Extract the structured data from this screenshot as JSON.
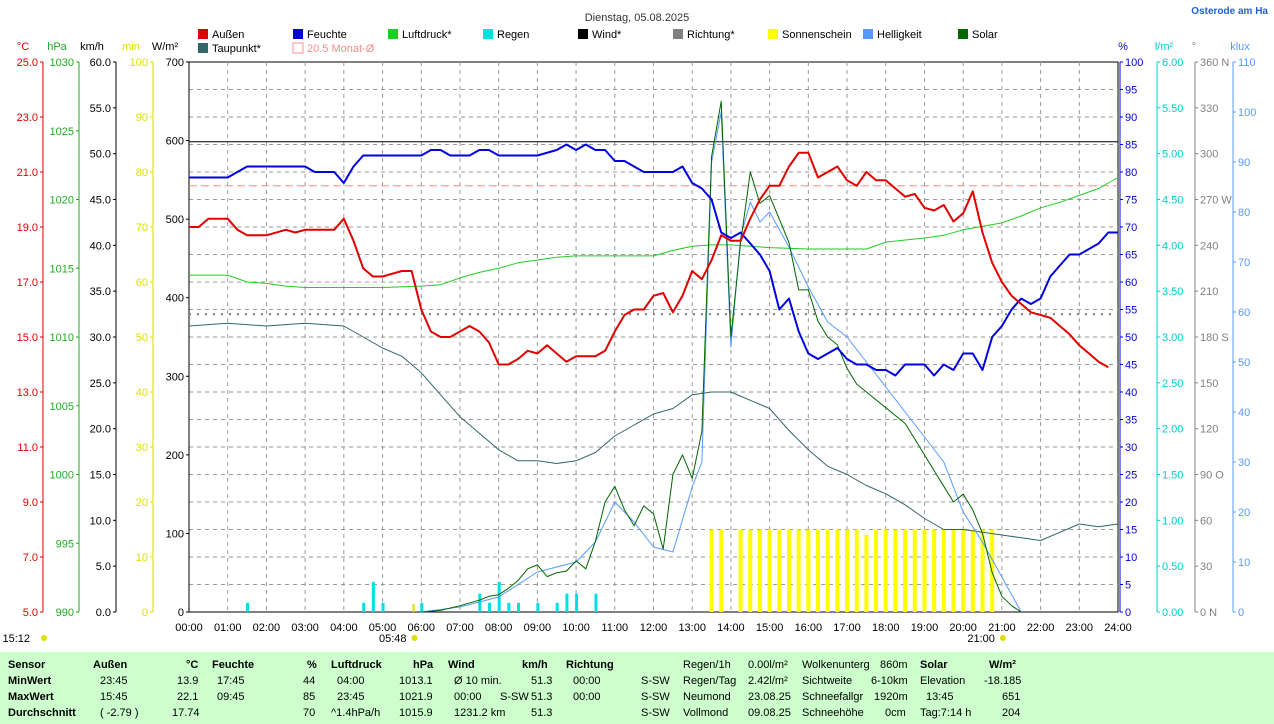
{
  "title": "Dienstag, 05.08.2025",
  "site": "Osterode am Ha",
  "colors": {
    "aussen": "#e00000",
    "feuchte": "#0000e0",
    "luftdruck": "#22cc22",
    "regen": "#00e0e0",
    "wind": "#000000",
    "richtung": "#808080",
    "sonnenschein": "#ffff00",
    "helligkeit": "#5599ff",
    "solar": "#006600",
    "taupunkt": "#336666",
    "monat": "#ff8888"
  },
  "legend": [
    {
      "label": "Außen",
      "color": "#e00000"
    },
    {
      "label": "Feuchte",
      "color": "#0000e0"
    },
    {
      "label": "Luftdruck*",
      "color": "#22cc22"
    },
    {
      "label": "Regen",
      "color": "#00e0e0"
    },
    {
      "label": "Wind*",
      "color": "#000000"
    },
    {
      "label": "Richtung*",
      "color": "#808080"
    },
    {
      "label": "Sonnenschein",
      "color": "#ffff00"
    },
    {
      "label": "Helligkeit",
      "color": "#5599ff"
    },
    {
      "label": "Solar",
      "color": "#006600"
    },
    {
      "label": "Taupunkt*",
      "color": "#336666"
    },
    {
      "label": "20.5 Monat-Ø",
      "color": "#ff8888"
    }
  ],
  "axis_units": {
    "temp": "°C",
    "hpa": "hPa",
    "kmh": "km/h",
    "min": "min",
    "wm2": "W/m²",
    "pct": "%",
    "lm2": "l/m²",
    "deg": "°",
    "klux": "klux"
  },
  "axes": {
    "temp": [
      "25.0",
      "23.0",
      "21.0",
      "19.0",
      "17.0",
      "15.0",
      "13.0",
      "11.0",
      "9.0",
      "7.0",
      "5.0"
    ],
    "hpa": [
      "1030",
      "1025",
      "1020",
      "1015",
      "1010",
      "1005",
      "1000",
      "995",
      "990"
    ],
    "kmh": [
      "60.0",
      "55.0",
      "50.0",
      "45.0",
      "40.0",
      "35.0",
      "30.0",
      "25.0",
      "20.0",
      "15.0",
      "10.0",
      "5.0",
      "0.0"
    ],
    "min": [
      "100",
      "90",
      "80",
      "70",
      "60",
      "50",
      "40",
      "30",
      "20",
      "10",
      "0"
    ],
    "wm2": [
      "700",
      "600",
      "500",
      "400",
      "300",
      "200",
      "100",
      "0"
    ],
    "pct": [
      "100",
      "95",
      "90",
      "85",
      "80",
      "75",
      "70",
      "65",
      "60",
      "55",
      "50",
      "45",
      "40",
      "35",
      "30",
      "25",
      "20",
      "15",
      "10",
      "5",
      "0"
    ],
    "lm2": [
      "6.00",
      "5.50",
      "5.00",
      "4.50",
      "4.00",
      "3.50",
      "3.00",
      "2.50",
      "2.00",
      "1.50",
      "1.00",
      "0.50",
      "0.00"
    ],
    "deg": [
      "360 N",
      "330",
      "300",
      "270 W",
      "240",
      "210",
      "180 S",
      "150",
      "120",
      "90 O",
      "60",
      "30",
      "0 N"
    ],
    "klux": [
      "110",
      "100",
      "90",
      "80",
      "70",
      "60",
      "50",
      "40",
      "30",
      "20",
      "10",
      "0"
    ]
  },
  "time_labels": [
    "00:00",
    "01:00",
    "02:00",
    "03:00",
    "04:00",
    "05:00",
    "06:00",
    "07:00",
    "08:00",
    "09:00",
    "10:00",
    "11:00",
    "12:00",
    "13:00",
    "14:00",
    "15:00",
    "16:00",
    "17:00",
    "18:00",
    "19:00",
    "20:00",
    "21:00",
    "22:00",
    "23:00",
    "24:00"
  ],
  "markers": {
    "now": "15:12",
    "sunrise": "05:48",
    "sunset": "21:00"
  },
  "chart_data": {
    "type": "line",
    "title": "Dienstag, 05.08.2025",
    "x_unit": "hour of day",
    "xlim": [
      0,
      24
    ],
    "series": [
      {
        "name": "Außen",
        "unit": "°C",
        "ylim": [
          5,
          25
        ],
        "x": [
          0,
          0.25,
          0.5,
          1,
          1.25,
          1.5,
          2,
          2.5,
          2.75,
          3,
          3.25,
          3.75,
          4,
          4.25,
          4.5,
          4.75,
          5,
          5.5,
          5.75,
          6,
          6.25,
          6.5,
          6.75,
          7,
          7.25,
          7.5,
          7.75,
          8,
          8.25,
          8.5,
          8.75,
          9,
          9.25,
          9.5,
          9.75,
          10,
          10.5,
          10.75,
          11,
          11.25,
          11.5,
          11.75,
          12,
          12.25,
          12.5,
          12.75,
          13,
          13.25,
          13.5,
          13.75,
          14,
          14.25,
          14.5,
          14.75,
          15,
          15.25,
          15.5,
          15.75,
          16,
          16.25,
          16.5,
          16.75,
          17,
          17.25,
          17.5,
          17.75,
          18,
          18.25,
          18.5,
          18.75,
          19,
          19.25,
          19.5,
          19.75,
          20,
          20.25,
          20.5,
          20.75,
          21,
          21.25,
          21.5,
          21.75,
          22,
          22.25,
          22.5,
          22.75,
          23,
          23.25,
          23.5,
          23.75
        ],
        "y": [
          19.0,
          19.0,
          19.3,
          19.3,
          18.9,
          18.7,
          18.7,
          18.9,
          18.8,
          18.9,
          18.9,
          18.9,
          19.3,
          18.5,
          17.5,
          17.2,
          17.2,
          17.4,
          17.4,
          16.0,
          15.2,
          15.0,
          15.0,
          15.2,
          15.4,
          15.2,
          14.8,
          14.0,
          14.0,
          14.2,
          14.5,
          14.4,
          14.7,
          14.4,
          14.1,
          14.3,
          14.3,
          14.5,
          15.2,
          15.8,
          16.0,
          16.0,
          16.5,
          16.6,
          15.9,
          16.5,
          17.4,
          17.1,
          17.8,
          18.7,
          18.5,
          18.5,
          19.3,
          20.0,
          20.5,
          20.5,
          21.2,
          21.7,
          21.7,
          20.8,
          21.0,
          21.2,
          20.7,
          20.5,
          21.0,
          20.7,
          20.7,
          20.4,
          20.1,
          20.2,
          19.7,
          19.6,
          19.8,
          19.2,
          19.5,
          20.3,
          18.8,
          17.7,
          17.0,
          16.5,
          16.2,
          15.9,
          15.8,
          15.7,
          15.4,
          15.1,
          14.7,
          14.4,
          14.1,
          13.9
        ]
      },
      {
        "name": "Feuchte",
        "unit": "%",
        "ylim": [
          0,
          100
        ],
        "x": [
          0,
          0.5,
          1,
          1.5,
          2,
          2.5,
          3,
          3.25,
          3.75,
          4,
          4.25,
          4.5,
          5,
          5.5,
          6,
          6.25,
          6.5,
          6.75,
          7,
          7.25,
          7.5,
          7.75,
          8,
          8.5,
          9,
          9.5,
          9.75,
          10,
          10.25,
          10.5,
          10.75,
          11,
          11.25,
          11.5,
          11.75,
          12,
          12.5,
          12.75,
          13,
          13.25,
          13.5,
          13.75,
          14,
          14.25,
          14.5,
          14.75,
          15,
          15.25,
          15.5,
          15.75,
          16,
          16.25,
          16.5,
          16.75,
          17,
          17.25,
          17.5,
          17.75,
          18,
          18.25,
          18.5,
          18.75,
          19,
          19.25,
          19.5,
          19.75,
          20,
          20.25,
          20.5,
          20.75,
          21,
          21.25,
          21.5,
          21.75,
          22,
          22.25,
          22.5,
          22.75,
          23,
          23.25,
          23.5,
          23.75,
          24
        ],
        "y": [
          79,
          79,
          79,
          81,
          81,
          81,
          81,
          80,
          80,
          78,
          81,
          83,
          83,
          83,
          83,
          84,
          84,
          83,
          83,
          83,
          84,
          84,
          83,
          83,
          83,
          84,
          85,
          84,
          85,
          84,
          84,
          82,
          82,
          81,
          80,
          80,
          80,
          81,
          78,
          77,
          75,
          69,
          68,
          69,
          67,
          65,
          62,
          55,
          57,
          51,
          47,
          46,
          47,
          48,
          46,
          45,
          45,
          44,
          44,
          43,
          45,
          45,
          45,
          43,
          45,
          44,
          47,
          47,
          44,
          50,
          52,
          55,
          57,
          56,
          57,
          61,
          63,
          65,
          65,
          66,
          67,
          69,
          69
        ]
      },
      {
        "name": "Luftdruck*",
        "unit": "hPa",
        "ylim": [
          990,
          1030
        ],
        "x": [
          0,
          1,
          1.5,
          2,
          2.5,
          3,
          4,
          5,
          6,
          6.5,
          7,
          7.5,
          8,
          8.5,
          9,
          9.5,
          10,
          11,
          12,
          12.5,
          13,
          13.5,
          14,
          15,
          16,
          17,
          17.5,
          18,
          19,
          19.5,
          20,
          21,
          21.5,
          22,
          22.5,
          23,
          23.5,
          24
        ],
        "y": [
          1014.5,
          1014.5,
          1014.0,
          1013.9,
          1013.7,
          1013.6,
          1013.6,
          1013.6,
          1013.7,
          1013.8,
          1014.3,
          1014.7,
          1015.0,
          1015.4,
          1015.6,
          1015.8,
          1015.9,
          1015.9,
          1015.9,
          1016.3,
          1016.6,
          1016.7,
          1016.7,
          1016.5,
          1016.4,
          1016.4,
          1016.4,
          1016.9,
          1017.2,
          1017.4,
          1017.8,
          1018.3,
          1018.8,
          1019.4,
          1019.8,
          1020.3,
          1020.8,
          1021.6
        ]
      },
      {
        "name": "Taupunkt*",
        "unit": "°C",
        "ylim": [
          5,
          25
        ],
        "x": [
          0,
          1,
          2,
          3,
          4,
          4.5,
          5,
          5.5,
          6,
          6.5,
          7,
          7.5,
          8,
          8.5,
          9,
          9.5,
          10,
          10.5,
          11,
          11.5,
          12,
          12.5,
          13,
          13.5,
          14,
          14.5,
          15,
          15.5,
          16,
          16.5,
          17,
          17.5,
          18,
          18.5,
          19,
          19.5,
          20,
          20.5,
          21,
          21.5,
          22,
          22.5,
          23,
          23.5,
          24
        ],
        "y": [
          15.4,
          15.5,
          15.4,
          15.5,
          15.4,
          15.0,
          14.6,
          14.3,
          13.7,
          12.9,
          12.1,
          11.5,
          10.9,
          10.5,
          10.5,
          10.4,
          10.5,
          10.8,
          11.4,
          11.8,
          12.2,
          12.4,
          12.9,
          13.0,
          13.0,
          12.7,
          12.4,
          11.6,
          10.9,
          10.3,
          10.0,
          9.6,
          9.3,
          8.9,
          8.4,
          8.0,
          8.0,
          7.9,
          7.8,
          7.7,
          7.6,
          7.9,
          8.2,
          8.1,
          8.2
        ]
      },
      {
        "name": "Solar",
        "unit": "W/m²",
        "ylim": [
          0,
          700
        ],
        "x": [
          6,
          6.5,
          7,
          7.5,
          7.75,
          8,
          8.25,
          8.5,
          8.75,
          9,
          9.25,
          9.5,
          9.75,
          10,
          10.25,
          10.5,
          10.75,
          11,
          11.25,
          11.5,
          11.75,
          12,
          12.25,
          12.5,
          12.75,
          13,
          13.25,
          13.5,
          13.75,
          14,
          14.25,
          14.5,
          14.75,
          15,
          15.25,
          15.5,
          15.75,
          16,
          16.25,
          16.5,
          16.75,
          17,
          17.25,
          17.5,
          17.75,
          18,
          18.25,
          18.5,
          18.75,
          19,
          19.25,
          19.5,
          19.75,
          20,
          20.25,
          20.5,
          20.75,
          21,
          21.25,
          21.5
        ],
        "y": [
          0,
          2,
          8,
          15,
          20,
          22,
          30,
          40,
          55,
          60,
          45,
          50,
          52,
          65,
          55,
          90,
          140,
          160,
          130,
          110,
          135,
          125,
          80,
          175,
          200,
          170,
          230,
          580,
          650,
          350,
          470,
          560,
          520,
          530,
          500,
          470,
          410,
          410,
          370,
          350,
          340,
          310,
          290,
          280,
          270,
          260,
          250,
          240,
          220,
          200,
          180,
          160,
          140,
          150,
          130,
          100,
          50,
          20,
          8,
          0
        ]
      },
      {
        "name": "Helligkeit",
        "unit": "klux",
        "ylim": [
          0,
          110
        ],
        "x": [
          6,
          7,
          8,
          9,
          10,
          10.5,
          11,
          11.5,
          12,
          12.5,
          13,
          13.25,
          13.5,
          13.75,
          14,
          14.25,
          14.5,
          14.75,
          15,
          15.5,
          16,
          16.5,
          17,
          17.5,
          18,
          18.5,
          19,
          19.5,
          20,
          20.5,
          21,
          21.5
        ],
        "y": [
          0,
          1,
          3,
          8,
          10,
          14,
          22,
          18,
          13,
          12,
          25,
          30,
          90,
          100,
          53,
          75,
          82,
          78,
          80,
          73,
          65,
          58,
          55,
          50,
          45,
          40,
          35,
          30,
          20,
          14,
          7,
          0
        ]
      },
      {
        "name": "Regen",
        "unit": "l/m²",
        "ylim": [
          0,
          6
        ],
        "x": [
          1.5,
          4.5,
          4.75,
          5,
          6,
          7.5,
          7.75,
          8,
          8.25,
          8.5,
          9,
          9.5,
          9.75,
          10,
          10.5
        ],
        "y": [
          0.1,
          0.1,
          0.33,
          0.1,
          0.1,
          0.2,
          0.1,
          0.33,
          0.1,
          0.1,
          0.1,
          0.1,
          0.2,
          0.2,
          0.2
        ]
      },
      {
        "name": "Sonnenschein",
        "unit": "min",
        "ylim": [
          0,
          100
        ],
        "x": [
          13.5,
          13.75,
          14.25,
          14.5,
          14.75,
          15,
          15.25,
          15.5,
          15.75,
          16,
          16.25,
          16.5,
          16.75,
          17,
          17.25,
          17.5,
          17.75,
          18,
          18.25,
          18.5,
          18.75,
          19,
          19.25,
          19.5,
          19.75,
          20,
          20.25,
          20.5,
          20.75
        ],
        "y": [
          15,
          15,
          15,
          15,
          15,
          15,
          15,
          15,
          15,
          15,
          15,
          15,
          15,
          15,
          15,
          14,
          15,
          15,
          15,
          15,
          15,
          15,
          15,
          15,
          15,
          15,
          15,
          15,
          15
        ]
      },
      {
        "name": "Wind*",
        "unit": "km/h",
        "ylim": [
          0,
          60
        ],
        "x": [
          0,
          24
        ],
        "y": [
          51.3,
          51.3
        ]
      },
      {
        "name": "Richtung*",
        "unit": "°",
        "ylim": [
          0,
          360
        ],
        "x": [
          0,
          24
        ],
        "y": [
          195,
          195
        ]
      },
      {
        "name": "20.5 Monat-Ø",
        "unit": "°C",
        "ylim": [
          5,
          25
        ],
        "x": [
          0,
          24
        ],
        "y": [
          20.5,
          20.5
        ]
      }
    ]
  },
  "footer": {
    "sensor": {
      "label": "Sensor",
      "rows": [
        "MinWert",
        "MaxWert",
        "Durchschnitt"
      ]
    },
    "aussen": {
      "label": "Außen",
      "unit": "°C",
      "rows": [
        [
          "23:45",
          "13.9"
        ],
        [
          "15:45",
          "22.1"
        ],
        [
          "( -2.79 )",
          "17.74"
        ]
      ]
    },
    "feuchte": {
      "label": "Feuchte",
      "unit": "%",
      "rows": [
        [
          "17:45",
          "44"
        ],
        [
          "09:45",
          "85"
        ],
        [
          "",
          "70"
        ]
      ]
    },
    "luftdruck": {
      "label": "Luftdruck",
      "unit": "hPa",
      "rows": [
        [
          "04:00",
          "1013.1"
        ],
        [
          "23:45",
          "1021.9"
        ],
        [
          "^1.4hPa/h",
          "1015.9"
        ]
      ]
    },
    "wind": {
      "label": "Wind",
      "unit": "km/h",
      "rows": [
        [
          "Ø 10 min.",
          "",
          "51.3"
        ],
        [
          "00:00",
          "S-SW",
          "51.3"
        ],
        [
          "1231.2 km",
          "",
          "51.3"
        ]
      ]
    },
    "richtung": {
      "label": "Richtung",
      "rows": [
        [
          "00:00",
          "S-SW"
        ],
        [
          "00:00",
          "S-SW"
        ],
        [
          "",
          "S-SW"
        ]
      ]
    },
    "regen": {
      "rows": [
        [
          "Regen/1h",
          "0.00l/m²"
        ],
        [
          "Regen/Tag",
          "2.42l/m²"
        ],
        [
          "Neumond",
          "23.08.25"
        ],
        [
          "Vollmond",
          "09.08.25"
        ]
      ]
    },
    "wolken": {
      "rows": [
        [
          "Wolkenunterg",
          "860m"
        ],
        [
          "Sichtweite",
          "6-10km"
        ],
        [
          "Schneefallgr",
          "1920m"
        ],
        [
          "Schneehöhe",
          "0cm"
        ]
      ]
    },
    "solar": {
      "label": "Solar",
      "unit": "W/m²",
      "rows": [
        [
          "Elevation",
          "-18.185"
        ],
        [
          "13:45",
          "651"
        ],
        [
          "Tag:7:14 h",
          "204"
        ]
      ]
    }
  }
}
